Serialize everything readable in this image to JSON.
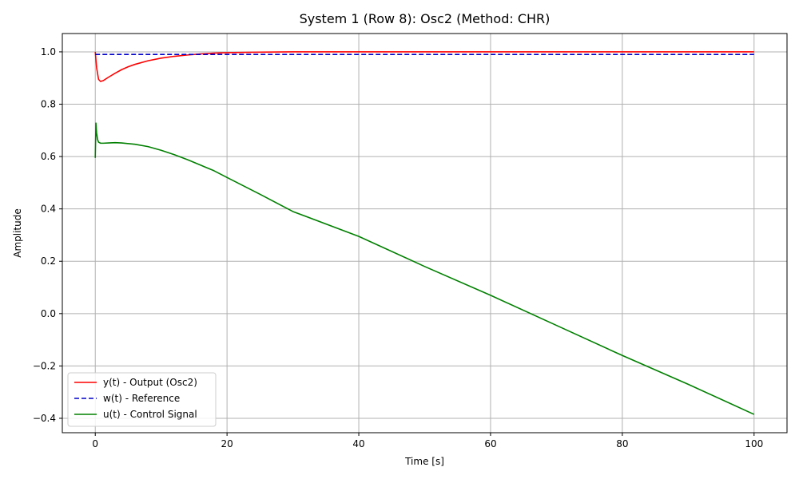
{
  "chart_data": {
    "type": "line",
    "title": "System 1 (Row 8): Osc2 (Method: CHR)",
    "xlabel": "Time [s]",
    "ylabel": "Amplitude",
    "xlim": [
      -5,
      105
    ],
    "ylim": [
      -0.455,
      1.07
    ],
    "xticks": [
      0,
      20,
      40,
      60,
      80,
      100
    ],
    "yticks": [
      -0.4,
      -0.2,
      0.0,
      0.2,
      0.4,
      0.6,
      0.8,
      1.0
    ],
    "xtick_labels": [
      "0",
      "20",
      "40",
      "60",
      "80",
      "100"
    ],
    "ytick_labels": [
      "−0.4",
      "−0.2",
      "0.0",
      "0.2",
      "0.4",
      "0.6",
      "0.8",
      "1.0"
    ],
    "grid": true,
    "legend_position": "lower-left",
    "series": [
      {
        "name": "y(t) - Output (Osc2)",
        "color": "#ff0000",
        "style": "solid",
        "x": [
          0,
          0.2,
          0.5,
          0.8,
          1.2,
          2,
          3,
          4,
          5,
          6,
          8,
          10,
          12,
          14,
          16,
          18,
          20,
          25,
          30,
          40,
          60,
          80,
          100
        ],
        "y": [
          1.0,
          0.94,
          0.895,
          0.887,
          0.89,
          0.903,
          0.918,
          0.932,
          0.943,
          0.952,
          0.966,
          0.976,
          0.983,
          0.988,
          0.992,
          0.995,
          0.997,
          0.999,
          1.0,
          1.0,
          1.0,
          1.0,
          1.0
        ]
      },
      {
        "name": "w(t) - Reference",
        "color": "#0000cc",
        "style": "dashed",
        "x": [
          0,
          100
        ],
        "y": [
          0.99,
          0.99
        ]
      },
      {
        "name": "u(t) - Control Signal",
        "color": "#008000",
        "style": "solid",
        "x": [
          0,
          0.1,
          0.2,
          0.35,
          0.5,
          0.8,
          1.2,
          2,
          3,
          4,
          6,
          8,
          10,
          12,
          14,
          16,
          18,
          20,
          25,
          30,
          40,
          50,
          60,
          70,
          80,
          90,
          100
        ],
        "y": [
          0.595,
          0.728,
          0.69,
          0.665,
          0.655,
          0.651,
          0.651,
          0.652,
          0.653,
          0.652,
          0.647,
          0.638,
          0.624,
          0.607,
          0.588,
          0.567,
          0.546,
          0.52,
          0.456,
          0.39,
          0.295,
          0.18,
          0.07,
          -0.045,
          -0.16,
          -0.27,
          -0.385
        ]
      }
    ]
  }
}
